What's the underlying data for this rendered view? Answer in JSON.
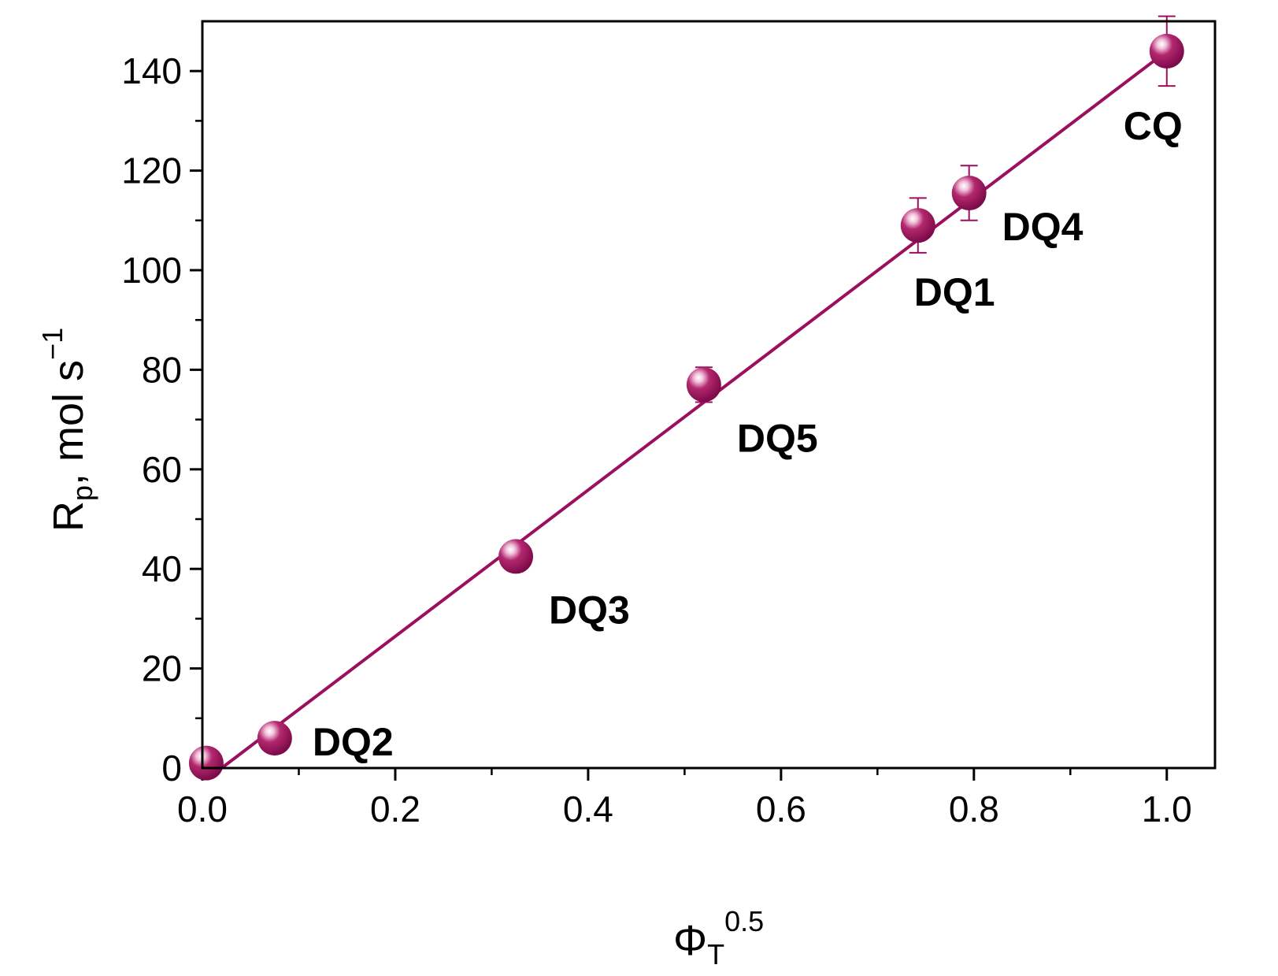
{
  "chart_data": {
    "type": "scatter",
    "xlabel": {
      "main": "Φ",
      "sub": "T",
      "sup": "0.5"
    },
    "ylabel": {
      "main": "R",
      "sub": "p",
      "rest": ", mol s",
      "sup": "−1"
    },
    "xlim": [
      0,
      1.05
    ],
    "ylim": [
      0,
      150
    ],
    "x_ticks": [
      0.0,
      0.2,
      0.4,
      0.6,
      0.8,
      1.0
    ],
    "x_tick_labels": [
      "0.0",
      "0.2",
      "0.4",
      "0.6",
      "0.8",
      "1.0"
    ],
    "y_ticks": [
      0,
      20,
      40,
      60,
      80,
      100,
      120,
      140
    ],
    "y_tick_labels": [
      "0",
      "20",
      "40",
      "60",
      "80",
      "100",
      "120",
      "140"
    ],
    "points": [
      {
        "label": "",
        "x": 0.004,
        "y": 1,
        "err": 0
      },
      {
        "label": "DQ2",
        "x": 0.075,
        "y": 6,
        "err": 1.2
      },
      {
        "label": "DQ3",
        "x": 0.325,
        "y": 42.5,
        "err": 1.5
      },
      {
        "label": "DQ5",
        "x": 0.52,
        "y": 77,
        "err": 3.5
      },
      {
        "label": "DQ1",
        "x": 0.742,
        "y": 109,
        "err": 5.5
      },
      {
        "label": "DQ4",
        "x": 0.795,
        "y": 115.5,
        "err": 5.5
      },
      {
        "label": "CQ",
        "x": 1.0,
        "y": 144,
        "err": 7
      }
    ],
    "fit_line": {
      "x": [
        0.02,
        1.0
      ],
      "y": [
        0,
        144
      ]
    },
    "grid": false,
    "legend": "none",
    "colors": {
      "marker": "#9c0f5f",
      "line": "#9c0f5f",
      "highlight": "#f2c4dc"
    }
  }
}
